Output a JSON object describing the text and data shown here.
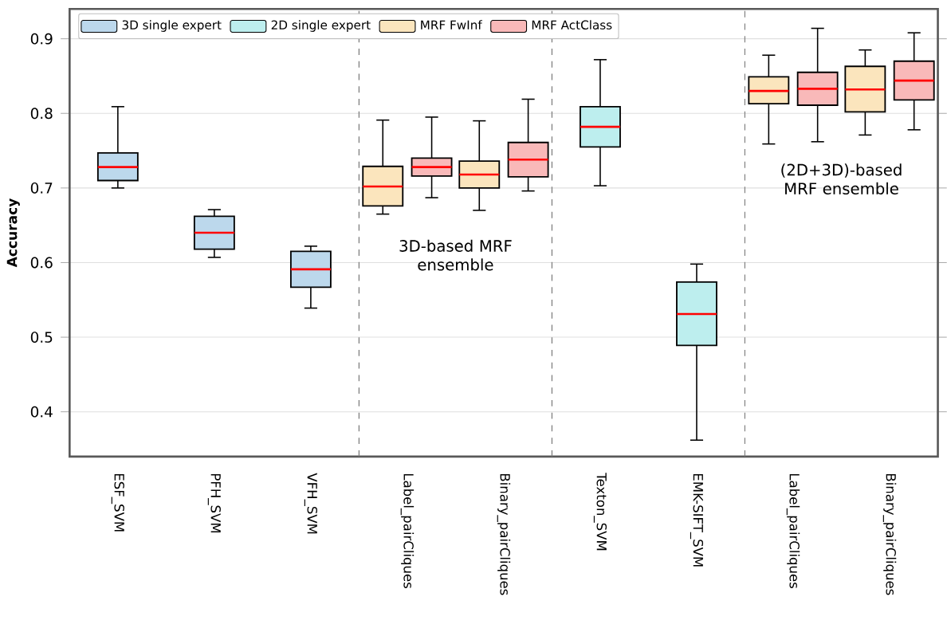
{
  "chart_data": {
    "type": "box",
    "ylabel": "Accuracy",
    "categories": [
      "ESF_SVM",
      "PFH_SVM",
      "VFH_SVM",
      "Label_pairCliques",
      "Binary_pairCliques",
      "Texton_SVM",
      "EMK-SIFT_SVM",
      "Label_pairCliques",
      "Binary_pairCliques"
    ],
    "series": [
      {
        "name": "3D single expert",
        "color": "#bcd8ec",
        "boxes": [
          {
            "low": 0.7,
            "q1": 0.71,
            "median": 0.728,
            "q3": 0.747,
            "high": 0.809
          },
          {
            "low": 0.607,
            "q1": 0.618,
            "median": 0.64,
            "q3": 0.662,
            "high": 0.671
          },
          {
            "low": 0.539,
            "q1": 0.567,
            "median": 0.591,
            "q3": 0.615,
            "high": 0.622
          },
          null,
          null,
          null,
          null,
          null,
          null
        ]
      },
      {
        "name": "2D single expert",
        "color": "#bdeeee",
        "boxes": [
          null,
          null,
          null,
          null,
          null,
          {
            "low": 0.703,
            "q1": 0.755,
            "median": 0.782,
            "q3": 0.809,
            "high": 0.872
          },
          {
            "low": 0.362,
            "q1": 0.489,
            "median": 0.531,
            "q3": 0.574,
            "high": 0.598
          },
          null,
          null
        ]
      },
      {
        "name": "MRF FwInf",
        "color": "#fbe5bd",
        "boxes": [
          null,
          null,
          null,
          {
            "low": 0.665,
            "q1": 0.676,
            "median": 0.702,
            "q3": 0.729,
            "high": 0.791
          },
          {
            "low": 0.67,
            "q1": 0.7,
            "median": 0.718,
            "q3": 0.736,
            "high": 0.79
          },
          null,
          null,
          {
            "low": 0.759,
            "q1": 0.813,
            "median": 0.83,
            "q3": 0.849,
            "high": 0.878
          },
          {
            "low": 0.771,
            "q1": 0.802,
            "median": 0.832,
            "q3": 0.863,
            "high": 0.885
          }
        ]
      },
      {
        "name": "MRF ActClass",
        "color": "#f9b9b9",
        "boxes": [
          null,
          null,
          null,
          {
            "low": 0.687,
            "q1": 0.716,
            "median": 0.728,
            "q3": 0.74,
            "high": 0.795
          },
          {
            "low": 0.696,
            "q1": 0.715,
            "median": 0.738,
            "q3": 0.761,
            "high": 0.819
          },
          null,
          null,
          {
            "low": 0.762,
            "q1": 0.811,
            "median": 0.833,
            "q3": 0.855,
            "high": 0.914
          },
          {
            "low": 0.778,
            "q1": 0.818,
            "median": 0.844,
            "q3": 0.87,
            "high": 0.908
          }
        ]
      }
    ],
    "ylim": [
      0.34,
      0.94
    ],
    "yticks": [
      0.4,
      0.5,
      0.6,
      0.7,
      0.8,
      0.9
    ],
    "grid": "y",
    "legend": "top left",
    "annotations": [
      "3D-based MRF ensemble",
      "(2D+3D)-based MRF ensemble"
    ]
  }
}
